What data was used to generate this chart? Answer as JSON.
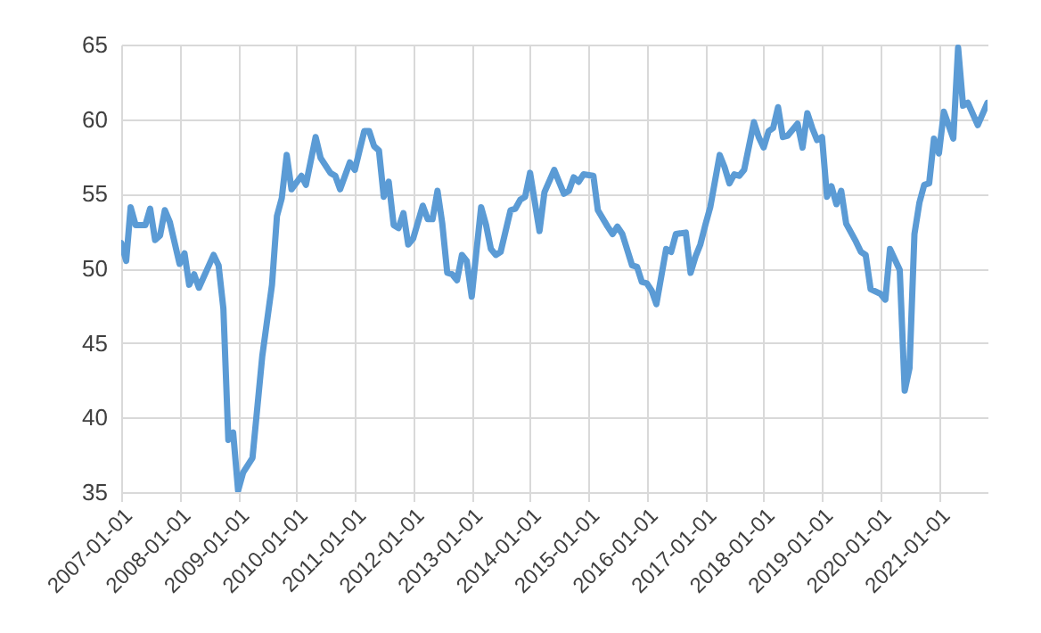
{
  "chart_data": {
    "type": "line",
    "x": [
      "2007-01",
      "2007-02",
      "2007-03",
      "2007-04",
      "2007-06",
      "2007-07",
      "2007-08",
      "2007-09",
      "2007-10",
      "2007-11",
      "2008-01",
      "2008-02",
      "2008-03",
      "2008-04",
      "2008-05",
      "2008-08",
      "2008-09",
      "2008-10",
      "2008-11",
      "2008-12",
      "2009-01",
      "2009-02",
      "2009-04",
      "2009-06",
      "2009-08",
      "2009-09",
      "2009-10",
      "2009-11",
      "2009-12",
      "2010-02",
      "2010-03",
      "2010-05",
      "2010-06",
      "2010-08",
      "2010-09",
      "2010-10",
      "2010-12",
      "2011-01",
      "2011-03",
      "2011-04",
      "2011-05",
      "2011-06",
      "2011-07",
      "2011-08",
      "2011-09",
      "2011-10",
      "2011-11",
      "2011-12",
      "2012-01",
      "2012-03",
      "2012-04",
      "2012-05",
      "2012-06",
      "2012-07",
      "2012-08",
      "2012-09",
      "2012-10",
      "2012-11",
      "2012-12",
      "2013-01",
      "2013-02",
      "2013-03",
      "2013-04",
      "2013-05",
      "2013-06",
      "2013-07",
      "2013-09",
      "2013-10",
      "2013-11",
      "2013-12",
      "2014-01",
      "2014-03",
      "2014-04",
      "2014-06",
      "2014-08",
      "2014-09",
      "2014-10",
      "2014-11",
      "2014-12",
      "2015-02",
      "2015-03",
      "2015-05",
      "2015-06",
      "2015-07",
      "2015-08",
      "2015-10",
      "2015-11",
      "2015-12",
      "2016-01",
      "2016-02",
      "2016-03",
      "2016-05",
      "2016-06",
      "2016-07",
      "2016-09",
      "2016-10",
      "2016-11",
      "2016-12",
      "2017-01",
      "2017-02",
      "2017-04",
      "2017-05",
      "2017-06",
      "2017-07",
      "2017-08",
      "2017-09",
      "2017-11",
      "2017-12",
      "2018-01",
      "2018-02",
      "2018-03",
      "2018-04",
      "2018-05",
      "2018-06",
      "2018-08",
      "2018-09",
      "2018-10",
      "2018-11",
      "2018-12",
      "2019-01",
      "2019-02",
      "2019-03",
      "2019-04",
      "2019-05",
      "2019-06",
      "2019-08",
      "2019-09",
      "2019-10",
      "2019-11",
      "2020-01",
      "2020-02",
      "2020-03",
      "2020-05",
      "2020-06",
      "2020-07",
      "2020-08",
      "2020-09",
      "2020-10",
      "2020-11",
      "2020-12",
      "2021-01",
      "2021-02",
      "2021-04",
      "2021-05",
      "2021-06",
      "2021-07",
      "2021-09",
      "2021-11"
    ],
    "series": [
      {
        "color": "#5b9bd5",
        "values": [
          51.7,
          50.5,
          54.1,
          52.9,
          52.9,
          54.0,
          51.9,
          52.2,
          53.9,
          53.1,
          50.3,
          51.0,
          48.9,
          49.6,
          48.7,
          50.9,
          50.2,
          47.3,
          38.5,
          39.0,
          35.1,
          36.3,
          37.3,
          44.1,
          48.9,
          53.5,
          54.7,
          57.6,
          55.3,
          56.2,
          55.6,
          58.8,
          57.4,
          56.4,
          56.2,
          55.3,
          57.1,
          56.6,
          59.2,
          59.2,
          58.2,
          57.9,
          54.8,
          55.8,
          52.9,
          52.7,
          53.7,
          51.6,
          52.0,
          54.2,
          53.3,
          53.3,
          55.2,
          53.0,
          49.7,
          49.6,
          49.2,
          50.9,
          50.5,
          48.1,
          51.3,
          54.1,
          52.9,
          51.3,
          50.9,
          51.1,
          53.9,
          54.0,
          54.6,
          54.8,
          56.4,
          52.5,
          55.1,
          56.6,
          55.0,
          55.2,
          56.1,
          55.8,
          56.3,
          56.2,
          53.9,
          52.8,
          52.3,
          52.8,
          52.3,
          50.2,
          50.1,
          49.1,
          49.0,
          48.5,
          47.6,
          51.3,
          51.1,
          52.3,
          52.4,
          49.7,
          50.8,
          51.6,
          52.9,
          54.1,
          57.6,
          56.8,
          55.7,
          56.3,
          56.2,
          56.6,
          59.8,
          58.8,
          58.1,
          59.2,
          59.4,
          60.8,
          58.8,
          58.9,
          59.7,
          58.1,
          60.4,
          59.4,
          58.6,
          58.8,
          54.8,
          55.5,
          54.3,
          55.2,
          53.0,
          51.8,
          51.1,
          50.9,
          48.6,
          48.3,
          47.9,
          51.3,
          49.9,
          41.8,
          43.3,
          52.3,
          54.4,
          55.6,
          55.7,
          58.7,
          57.7,
          60.5,
          58.7,
          64.8,
          60.9,
          61.1,
          59.6,
          61.1
        ]
      }
    ],
    "xlim": [
      "2007-01",
      "2021-11"
    ],
    "xticks": [
      "2007-01-01",
      "2008-01-01",
      "2009-01-01",
      "2010-01-01",
      "2011-01-01",
      "2012-01-01",
      "2013-01-01",
      "2014-01-01",
      "2015-01-01",
      "2016-01-01",
      "2017-01-01",
      "2018-01-01",
      "2019-01-01",
      "2020-01-01",
      "2021-01-01"
    ],
    "ylim": [
      35,
      65
    ],
    "yticks": [
      35,
      40,
      45,
      50,
      55,
      60,
      65
    ],
    "grid": true,
    "line_style": "solid",
    "marker": "none"
  }
}
